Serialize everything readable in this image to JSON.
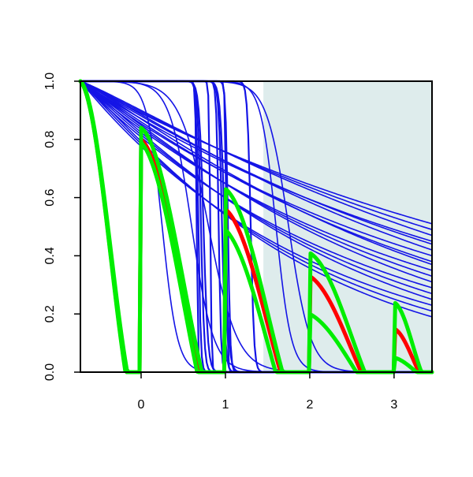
{
  "chart_data": {
    "type": "line",
    "title": "",
    "xlabel": "",
    "ylabel": "",
    "xlim": [
      -0.72,
      3.45
    ],
    "ylim": [
      0.0,
      1.0
    ],
    "x_ticks": [
      "0",
      "1",
      "2",
      "3"
    ],
    "x_tick_values": [
      0,
      1,
      2,
      3
    ],
    "y_ticks": [
      "0.0",
      "0.2",
      "0.4",
      "0.6",
      "0.8",
      "1.0"
    ],
    "y_tick_values": [
      0,
      0.2,
      0.4,
      0.6,
      0.8,
      1.0
    ],
    "grid": false,
    "legend": "none",
    "shaded_region": {
      "x_from": 1.45,
      "x_to": 3.45,
      "y_from": 0.0,
      "y_to": 1.0,
      "color": "#deecec"
    },
    "series_colors": {
      "blue": "#1414e6",
      "red": "#ff0000",
      "green": "#00ee00"
    },
    "blue_curves": {
      "description_kind": "many decreasing survival-like curves",
      "values_at_x_3.45": [
        0.51,
        0.49,
        0.47,
        0.45,
        0.44,
        0.42,
        0.4,
        0.38,
        0.37,
        0.35,
        0.33,
        0.31,
        0.29,
        0.27,
        0.25,
        0.23,
        0.21,
        0.19
      ],
      "steep_drop_centers_x": [
        0.66,
        0.68,
        0.71,
        0.74,
        0.82,
        0.92,
        0.96,
        0.99,
        1.01,
        1.03,
        1.3
      ],
      "sigmoid_centers_x": [
        0.25,
        0.6,
        0.8,
        1.6,
        1.75
      ]
    },
    "series": [
      {
        "color": "red",
        "values_at": {
          "-0.72": 1.0,
          "0": 0.8,
          "1": 0.56,
          "2": 0.33,
          "3": 0.15,
          "3.45": 0.09
        }
      },
      {
        "color": "green",
        "values_at": {
          "-0.72": 1.0,
          "0": 0.84,
          "1": 0.63,
          "2": 0.41,
          "3": 0.24,
          "3.45": 0.18
        }
      },
      {
        "color": "green",
        "values_at": {
          "-0.72": 1.0,
          "0": 0.79,
          "1": 0.49,
          "2": 0.2,
          "3": 0.05,
          "3.45": 0.02
        }
      }
    ]
  }
}
